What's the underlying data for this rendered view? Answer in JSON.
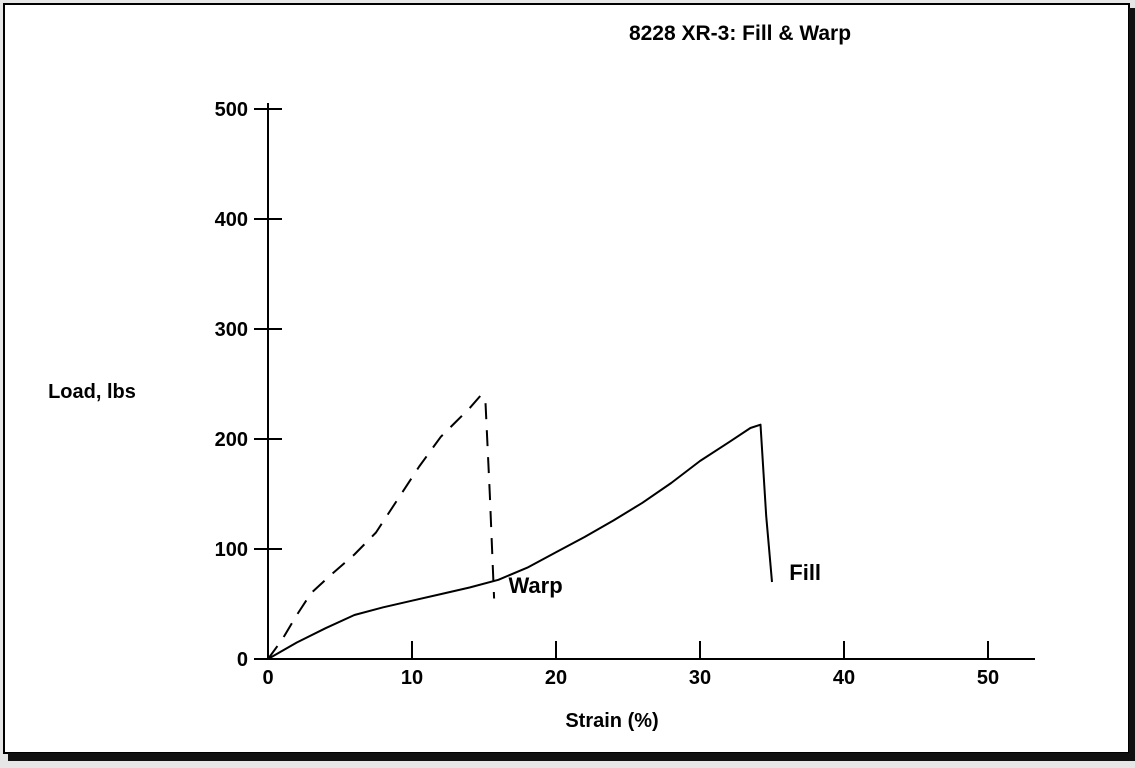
{
  "chart_data": {
    "type": "line",
    "title": "8228 XR-3: Fill & Warp",
    "xlabel": "Strain (%)",
    "ylabel": "Load, lbs",
    "xlim": [
      0,
      53
    ],
    "ylim": [
      0,
      500
    ],
    "x_ticks": [
      "0",
      "10",
      "20",
      "30",
      "40",
      "50"
    ],
    "y_ticks": [
      "0",
      "100",
      "200",
      "300",
      "400",
      "500"
    ],
    "grid": false,
    "legend": "none",
    "series": [
      {
        "name": "Warp",
        "style": "dashed",
        "x": [
          0,
          1,
          2,
          3,
          4.5,
          6,
          7.5,
          9,
          10.5,
          12,
          13,
          14,
          14.8,
          15.1,
          15.4,
          15.7
        ],
        "y": [
          0,
          18,
          40,
          60,
          78,
          95,
          115,
          145,
          175,
          202,
          215,
          228,
          240,
          235,
          150,
          55
        ]
      },
      {
        "name": "Fill",
        "style": "solid",
        "x": [
          0,
          2,
          4,
          6,
          8,
          10,
          12,
          14,
          16,
          18,
          20,
          22,
          24,
          26,
          28,
          30,
          32,
          33.5,
          34.2,
          34.6,
          35
        ],
        "y": [
          0,
          15,
          28,
          40,
          47,
          53,
          59,
          65,
          72,
          83,
          97,
          111,
          126,
          142,
          160,
          180,
          197,
          210,
          213,
          130,
          70
        ]
      }
    ]
  }
}
